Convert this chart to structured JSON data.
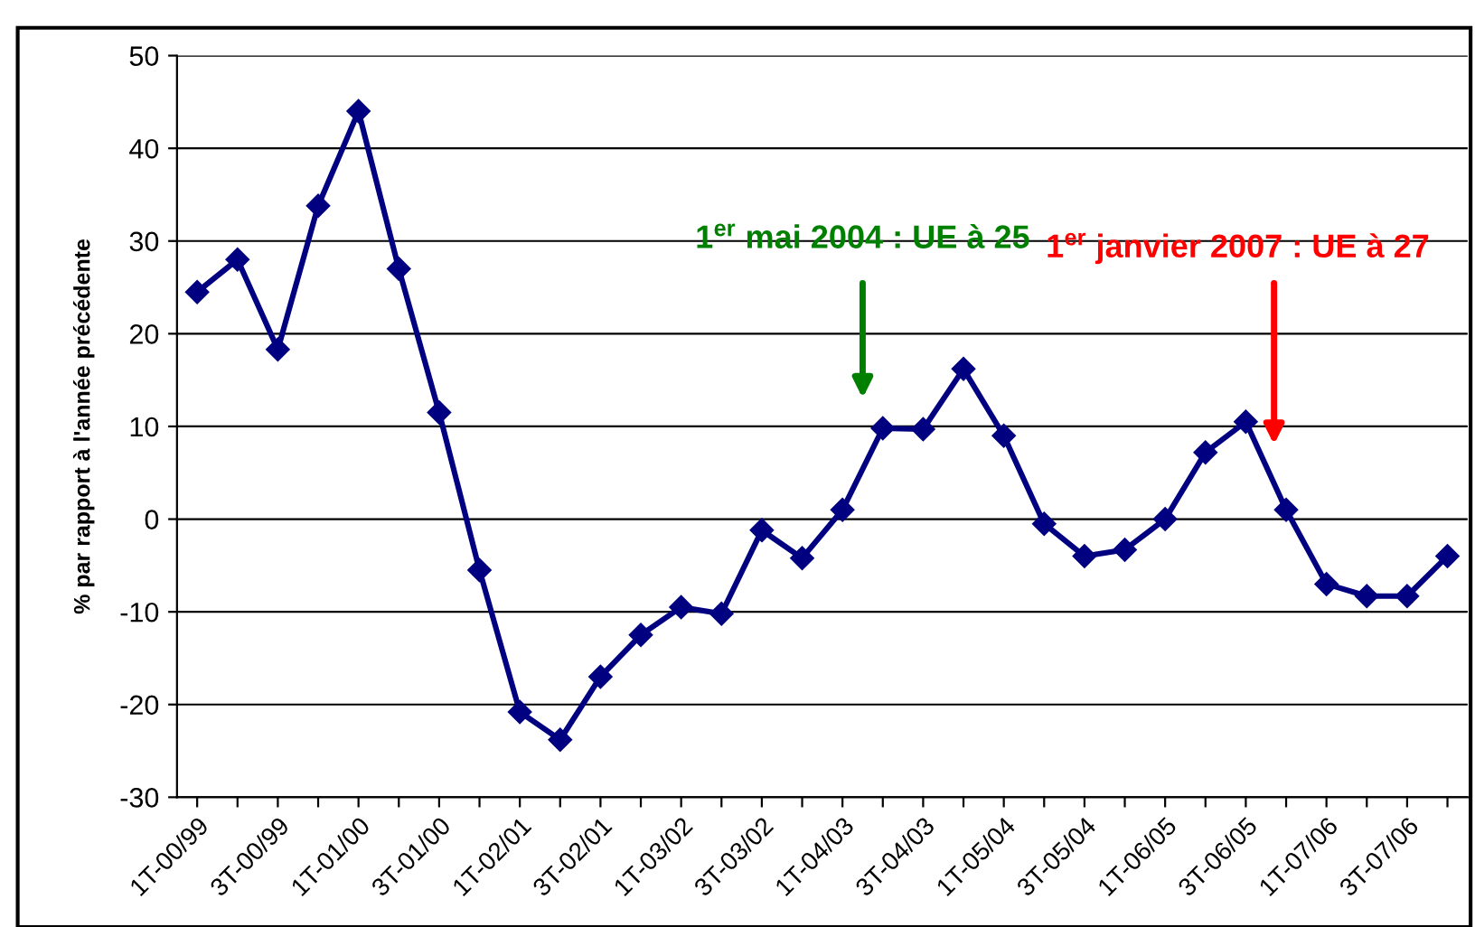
{
  "chart_data": {
    "type": "line",
    "ylabel": "% par rapport à l'année précédente",
    "categories": [
      "1T-00/99",
      null,
      "3T-00/99",
      null,
      "1T-01/00",
      null,
      "3T-01/00",
      null,
      "1T-02/01",
      null,
      "3T-02/01",
      null,
      "1T-03/02",
      null,
      "3T-03/02",
      null,
      "1T-04/03",
      null,
      "3T-04/03",
      null,
      "1T-05/04",
      null,
      "3T-05/04",
      null,
      "1T-06/05",
      null,
      "3T-06/05",
      null,
      "1T-07/06",
      null,
      "3T-07/06",
      null
    ],
    "series": [
      {
        "color": "#000080",
        "values": [
          24.5,
          28,
          18.3,
          33.8,
          44,
          27,
          11.5,
          -5.5,
          -20.8,
          -23.8,
          -17,
          -12.5,
          -9.5,
          -10.2,
          -1.2,
          -4.2,
          1,
          9.8,
          9.7,
          16.2,
          9,
          -0.5,
          -4,
          -3.3,
          0,
          7.2,
          10.5,
          1,
          -7,
          -8.3,
          -8.3,
          -4
        ]
      }
    ],
    "ylim": [
      -30,
      50
    ],
    "yticks": [
      -30,
      -20,
      -10,
      0,
      10,
      20,
      30,
      40,
      50
    ],
    "grid": "y",
    "legend": false,
    "marker": "diamond",
    "line_style": "solid",
    "annotations": [
      "1$^{er}$ mai 2004 : UE à 25",
      "1$^{er}$ janvier 2007 : UE à 27"
    ]
  }
}
